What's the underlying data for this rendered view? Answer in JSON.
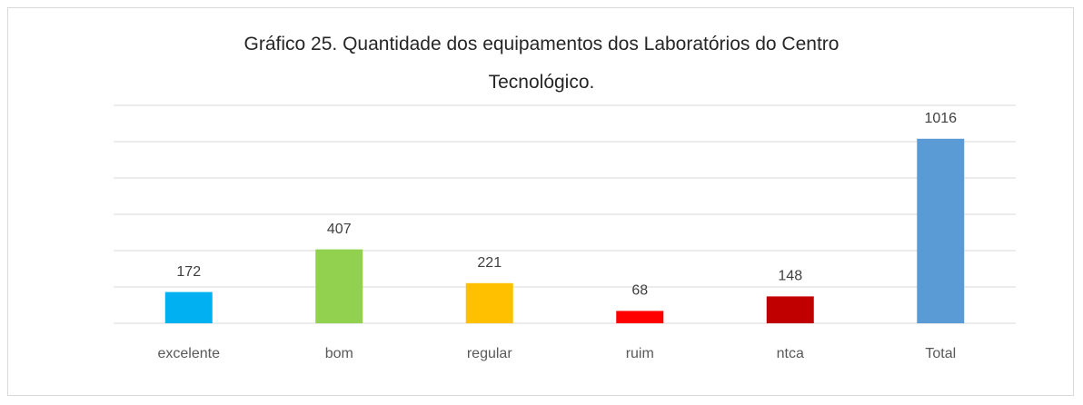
{
  "chart_data": {
    "type": "bar",
    "title": "Gráfico 25. Quantidade dos equipamentos dos Laboratórios do Centro Tecnológico.",
    "categories": [
      "excelente",
      "bom",
      "regular",
      "ruim",
      "ntca",
      "Total"
    ],
    "values": [
      172,
      407,
      221,
      68,
      148,
      1016
    ],
    "colors": [
      "#00b0f0",
      "#92d050",
      "#ffc000",
      "#ff0000",
      "#c00000",
      "#5b9bd5"
    ],
    "ylim": [
      0,
      1200
    ],
    "yticks": [
      0,
      200,
      400,
      600,
      800,
      1000,
      1200
    ],
    "grid": true
  }
}
